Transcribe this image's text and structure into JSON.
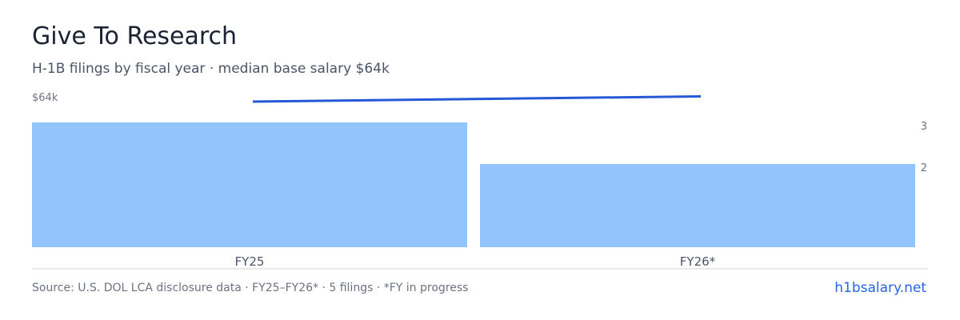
{
  "header": {
    "title": "Give To Research",
    "subtitle": "H-1B filings by fiscal year · median base salary $64k"
  },
  "chart_data": {
    "type": "bar",
    "categories": [
      "FY25",
      "FY26*"
    ],
    "series": [
      {
        "values": [
          3,
          2
        ],
        "kind": "bar"
      },
      {
        "values": [
          64,
          64
        ],
        "kind": "line"
      }
    ],
    "left_axis_label": "$64k",
    "right_axis_ticks": [
      2,
      3
    ],
    "right_ylim": [
      0,
      3
    ],
    "colors": {
      "bar": "#93c5fd",
      "line": "#2458d6",
      "axis": "#d1d5db",
      "tick": "#6b7280"
    },
    "grid": false
  },
  "footer": {
    "source": "Source: U.S. DOL LCA disclosure data · FY25–FY26* · 5 filings · *FY in progress",
    "brand": "h1bsalary.net"
  }
}
